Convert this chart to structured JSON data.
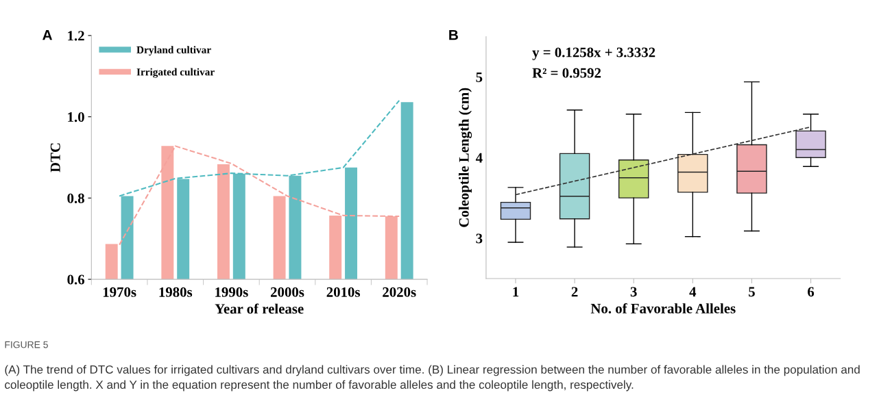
{
  "chart_data": [
    {
      "type": "bar",
      "xlabel": "Year of release",
      "ylabel": "DTC",
      "categories": [
        "1970s",
        "1980s",
        "1990s",
        "2000s",
        "2010s",
        "2020s"
      ],
      "ylim": [
        0.6,
        1.2
      ],
      "yticks": [
        {
          "value": 0.6,
          "label": "0.6"
        },
        {
          "value": 0.8,
          "label": "0.8"
        },
        {
          "value": 1.0,
          "label": "1.0"
        },
        {
          "value": 1.2,
          "label": "1.2"
        }
      ],
      "grid": false,
      "legend": "top left",
      "series": [
        {
          "name": "Irrigated cultivar",
          "color": "#f7aaa3",
          "values": [
            0.687,
            0.928,
            0.883,
            0.805,
            0.757,
            0.755
          ]
        },
        {
          "name": "Dryland cultivar",
          "color": "#64bdc2",
          "values": [
            0.805,
            0.847,
            0.86,
            0.855,
            0.875,
            1.036
          ]
        },
        {
          "type": "line",
          "line_style": "dashed",
          "color": "#f4a19b",
          "values": [
            0.685,
            0.928,
            0.885,
            0.805,
            0.757,
            0.755
          ]
        },
        {
          "type": "line",
          "line_style": "dashed",
          "color": "#4fbac0",
          "values": [
            0.805,
            0.848,
            0.861,
            0.855,
            0.875,
            1.04
          ]
        }
      ],
      "annotations": [
        "A",
        "FIGURE 5",
        "(A) The trend of DTC values for irrigated cultivars and dryland cultivars over time. (B) Linear regression between the number of favorable alleles in the population and coleoptile length. X and Y in the equation represent the number of favorable alleles and the coleoptile length, respectively."
      ]
    },
    {
      "type": "box",
      "xlabel": "No. of Favorable Alleles",
      "ylabel": "Coleoptile Length (cm)",
      "categories": [
        "1",
        "2",
        "3",
        "4",
        "5",
        "6"
      ],
      "ylim": [
        2.5,
        5.5
      ],
      "yticks": [
        3,
        4,
        5
      ],
      "grid": false,
      "series": [
        {
          "colors": [
            "#b4c7e7",
            "#9dd5d3",
            "#c2dc76",
            "#f9dfc3",
            "#f0a8ab",
            "#d3c4e2"
          ],
          "boxes": [
            {
              "low": 2.95,
              "q1": 3.235,
              "median": 3.376,
              "q3": 3.445,
              "high": 3.63
            },
            {
              "low": 2.89,
              "q1": 3.24,
              "median": 3.52,
              "q3": 4.05,
              "high": 4.59
            },
            {
              "low": 2.93,
              "q1": 3.5,
              "median": 3.75,
              "q3": 3.97,
              "high": 4.54
            },
            {
              "low": 3.02,
              "q1": 3.57,
              "median": 3.82,
              "q3": 4.04,
              "high": 4.56
            },
            {
              "low": 3.09,
              "q1": 3.56,
              "median": 3.83,
              "q3": 4.16,
              "high": 4.94
            },
            {
              "low": 3.89,
              "q1": 4.0,
              "median": 4.1,
              "q3": 4.33,
              "high": 4.54
            }
          ]
        },
        {
          "type": "line",
          "line_style": "dashed",
          "color": "#333333",
          "x": [
            "1",
            "6"
          ],
          "values": [
            3.54,
            4.38
          ]
        }
      ],
      "annotations": [
        "B",
        "y = 0.1258x + 3.3332",
        "R² = 0.9592"
      ]
    }
  ]
}
